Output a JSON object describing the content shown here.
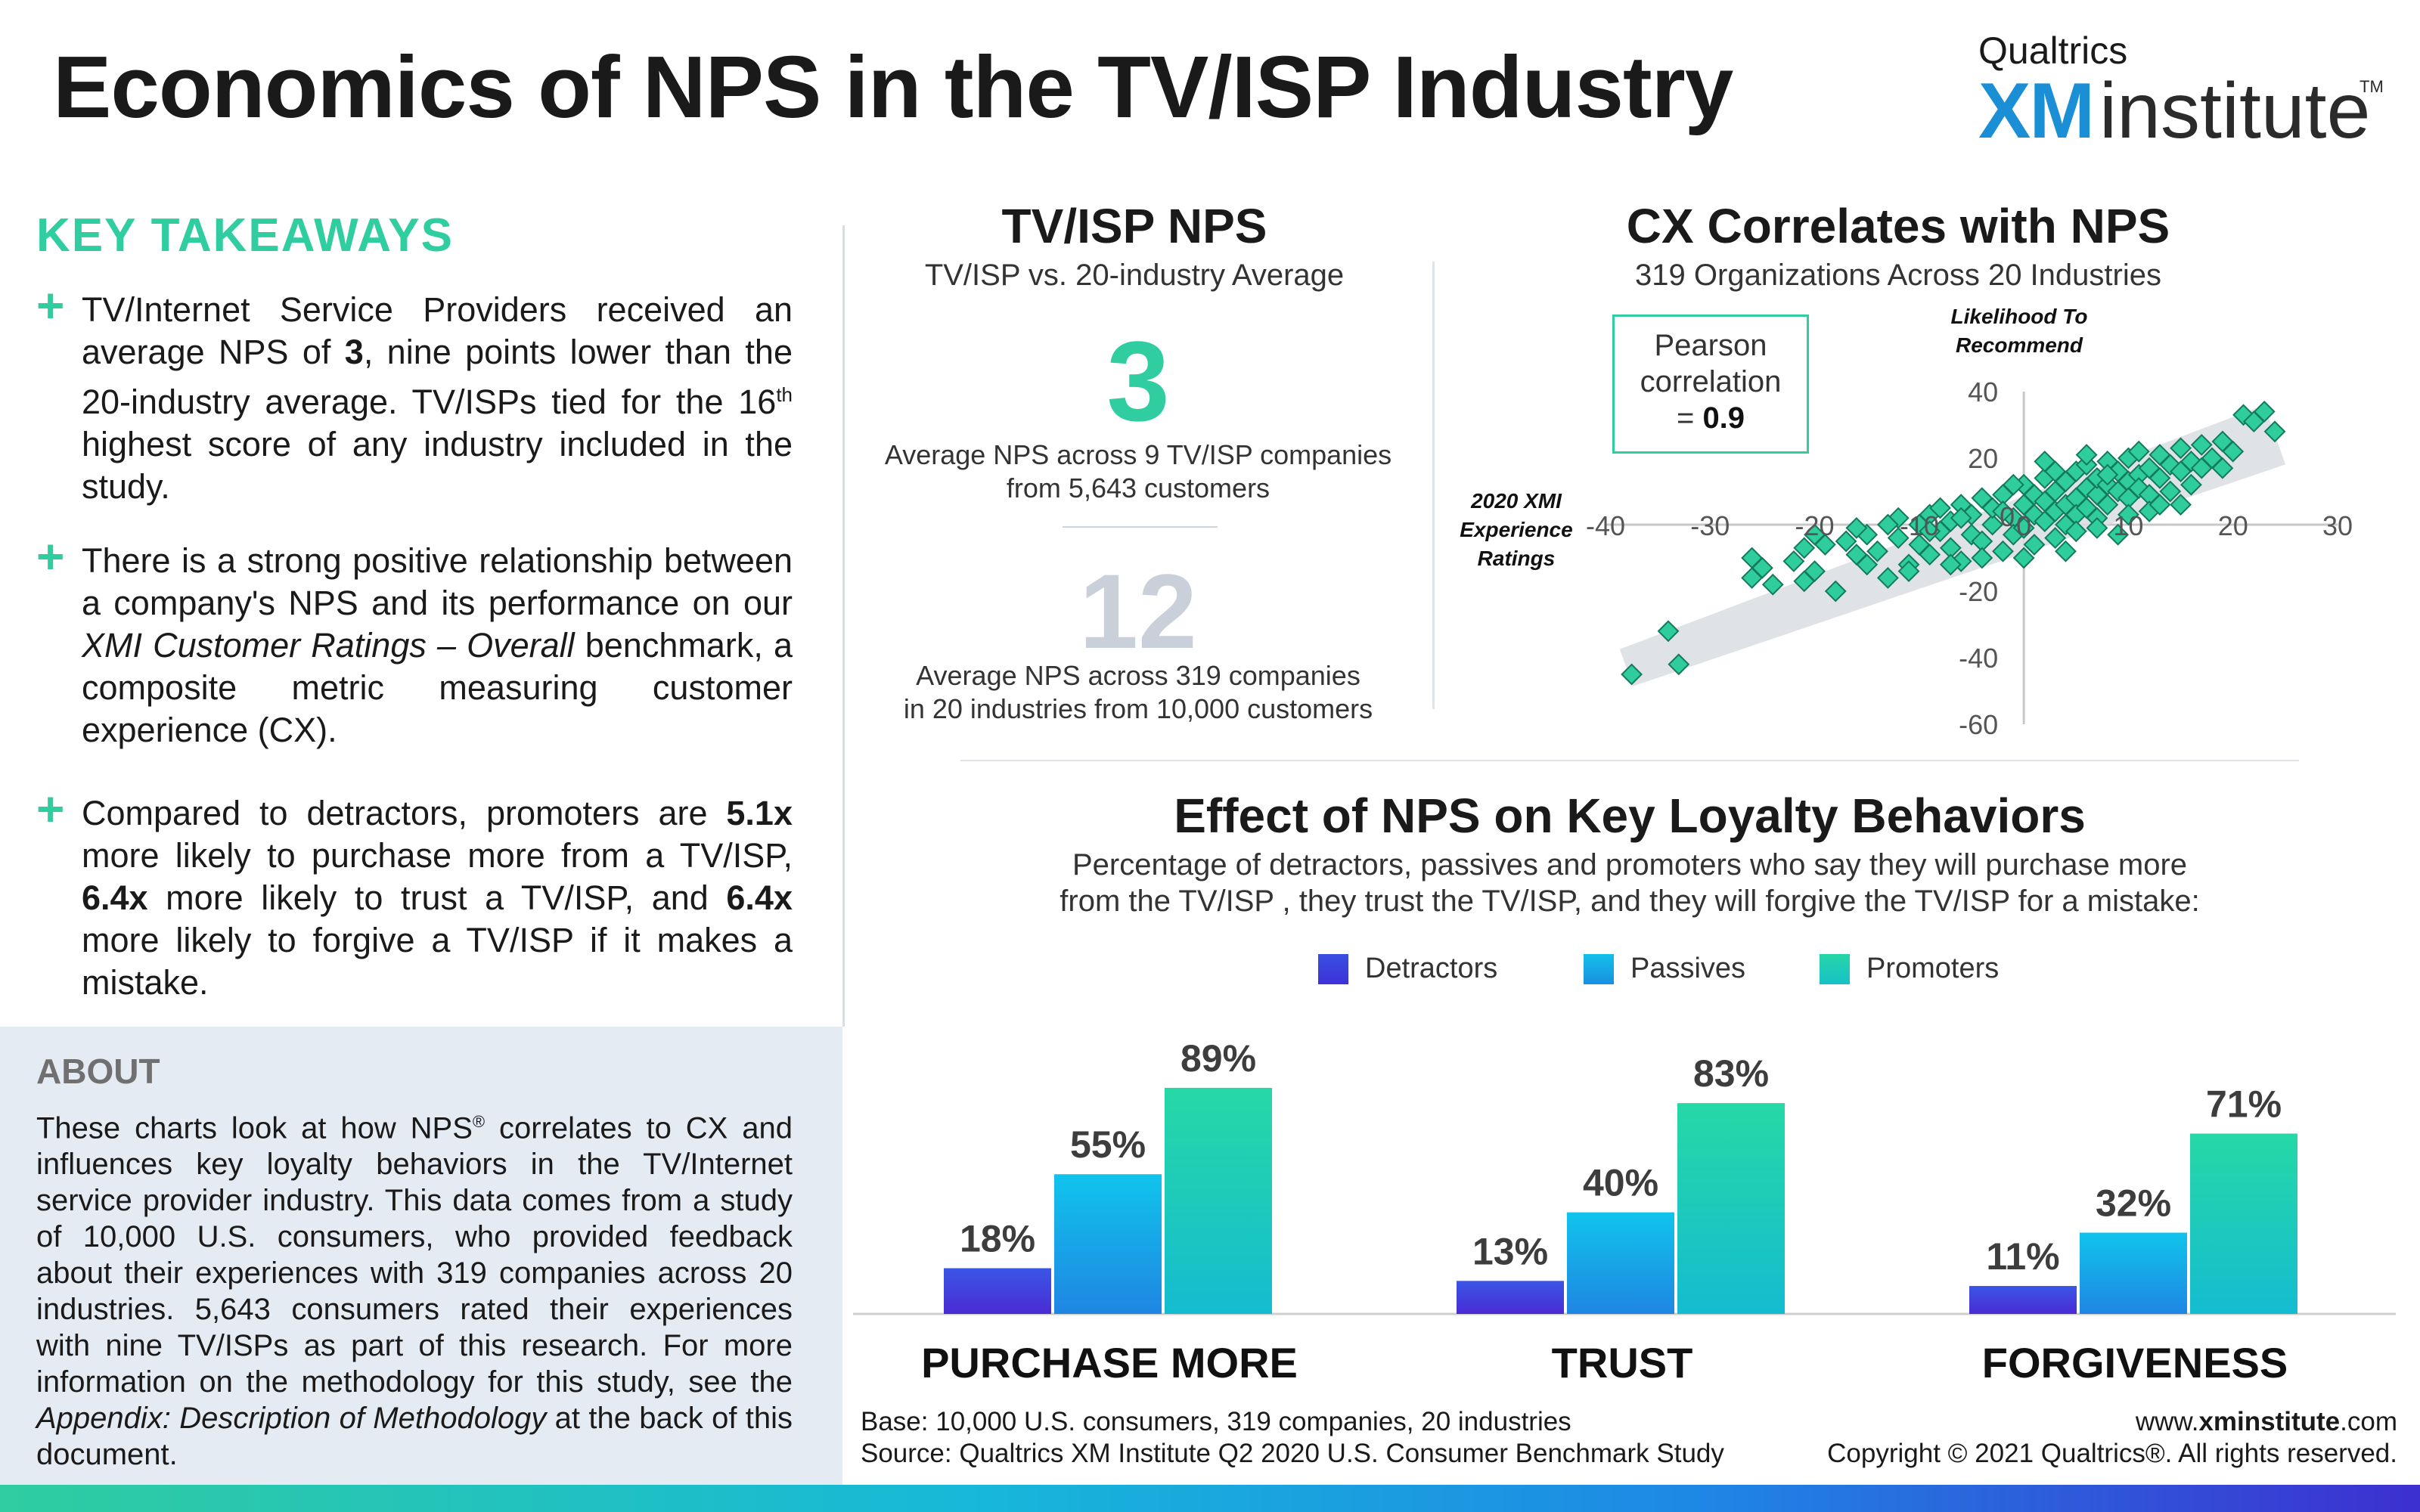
{
  "header": {
    "title": "Economics of NPS in the TV/ISP Industry",
    "brand_top": "Qualtrics",
    "brand_xm": "XM",
    "brand_institute": "institute",
    "brand_tm": "TM"
  },
  "takeaways": {
    "heading": "KEY TAKEAWAYS",
    "items": [
      {
        "p1": "TV/Internet Service Providers received an average NPS of ",
        "b1": "3",
        "p2": ", nine points lower than the 20-industry average. TV/ISPs tied for the 16",
        "sup": "th",
        "p3": " highest score of any industry included in the study."
      },
      {
        "p1": "There is a strong positive relationship between a company's NPS and its performance on our ",
        "i1": "XMI Customer Ratings – Overall",
        "p2": " benchmark, a composite metric measuring customer experience (CX)."
      },
      {
        "p1": "Compared to detractors, promoters are ",
        "b1": "5.1x",
        "p2": " more likely to purchase more from a TV/ISP, ",
        "b2": "6.4x",
        "p3": " more likely to trust a TV/ISP, and ",
        "b3": "6.4x",
        "p4": " more likely to forgive a TV/ISP if it makes a mistake."
      }
    ]
  },
  "about": {
    "heading": "ABOUT",
    "p1": "These charts look at how NPS",
    "reg": "®",
    "p2": " correlates to CX and influences key loyalty behaviors in the TV/Internet service provider industry. This data comes from a study of 10,000 U.S. consumers, who provided feedback about their experiences with 319 companies across 20 industries. 5,643 consumers rated their experiences with nine TV/ISPs as part of this research. For more information on the methodology for this study, see the ",
    "italic": "Appendix: Description of Methodology",
    "p3": " at the back of this document."
  },
  "nps": {
    "title": "TV/ISP NPS",
    "subtitle": "TV/ISP vs. 20-industry Average",
    "value_isp": "3",
    "caption_isp_1": "Average NPS across 9 TV/ISP companies",
    "caption_isp_2": "from 5,643 customers",
    "value_avg": "12",
    "caption_avg_1": "Average NPS across 319 companies",
    "caption_avg_2": "in 20 industries from 10,000 customers"
  },
  "colors": {
    "green": "#2fcda0",
    "blue_brand": "#1a8fd6",
    "detractors": "#3d32d8",
    "passives": "#0fb2ea",
    "promoters": "#27d6a6"
  },
  "chart_data": [
    {
      "type": "scatter",
      "title": "CX Correlates with NPS",
      "subtitle": "319 Organizations Across 20 Industries",
      "xlabel": "2020 XMI Experience Ratings",
      "ylabel": "Likelihood To Recommend",
      "annotation": "Pearson correlation = 0.9",
      "pearson_label": "Pearson correlation",
      "pearson_eq": "= ",
      "pearson_value": "0.9",
      "xlim": [
        -40,
        30
      ],
      "ylim": [
        -60,
        40
      ],
      "x_ticks": [
        "-40",
        "-30",
        "-20",
        "-10",
        "0",
        "10",
        "20",
        "30"
      ],
      "y_ticks": [
        "40",
        "20",
        "0",
        "-20",
        "-40",
        "-60"
      ],
      "trend": [
        [
          -38,
          -43
        ],
        [
          24,
          27
        ]
      ],
      "points": [
        [
          -37.5,
          -45
        ],
        [
          -34,
          -32
        ],
        [
          -33,
          -42
        ],
        [
          -26,
          -10
        ],
        [
          -25,
          -13
        ],
        [
          -24,
          -18
        ],
        [
          -22,
          -11
        ],
        [
          -21,
          -7
        ],
        [
          -20,
          -14
        ],
        [
          -19,
          -6
        ],
        [
          -18,
          -20
        ],
        [
          -17,
          -5
        ],
        [
          -16,
          -9
        ],
        [
          -15,
          -3
        ],
        [
          -14,
          -8
        ],
        [
          -13,
          -16
        ],
        [
          -12,
          -4
        ],
        [
          -12,
          2
        ],
        [
          -11,
          -12
        ],
        [
          -10,
          0
        ],
        [
          -10,
          -6
        ],
        [
          -9,
          3
        ],
        [
          -9,
          -9
        ],
        [
          -8,
          -2
        ],
        [
          -8,
          5
        ],
        [
          -7,
          -7
        ],
        [
          -7,
          1
        ],
        [
          -6,
          6
        ],
        [
          -6,
          -11
        ],
        [
          -5,
          -3
        ],
        [
          -5,
          3
        ],
        [
          -4,
          8
        ],
        [
          -4,
          -5
        ],
        [
          -3,
          0
        ],
        [
          -3,
          5
        ],
        [
          -2,
          -8
        ],
        [
          -2,
          9
        ],
        [
          -1,
          2
        ],
        [
          -1,
          -3
        ],
        [
          0,
          6
        ],
        [
          0,
          -1
        ],
        [
          0,
          12
        ],
        [
          1,
          3
        ],
        [
          1,
          -6
        ],
        [
          1,
          9
        ],
        [
          2,
          1
        ],
        [
          2,
          7
        ],
        [
          2,
          14
        ],
        [
          3,
          4
        ],
        [
          3,
          -4
        ],
        [
          3,
          10
        ],
        [
          4,
          6
        ],
        [
          4,
          13
        ],
        [
          4,
          0
        ],
        [
          5,
          8
        ],
        [
          5,
          16
        ],
        [
          5,
          3
        ],
        [
          6,
          11
        ],
        [
          6,
          5
        ],
        [
          6,
          18
        ],
        [
          7,
          9
        ],
        [
          7,
          14
        ],
        [
          7,
          2
        ],
        [
          8,
          12
        ],
        [
          8,
          19
        ],
        [
          8,
          6
        ],
        [
          9,
          10
        ],
        [
          9,
          16
        ],
        [
          9,
          -3
        ],
        [
          10,
          13
        ],
        [
          10,
          20
        ],
        [
          10,
          8
        ],
        [
          11,
          15
        ],
        [
          11,
          11
        ],
        [
          11,
          22
        ],
        [
          12,
          17
        ],
        [
          12,
          9
        ],
        [
          13,
          14
        ],
        [
          13,
          21
        ],
        [
          14,
          18
        ],
        [
          14,
          10
        ],
        [
          15,
          16
        ],
        [
          15,
          23
        ],
        [
          16,
          19
        ],
        [
          16,
          12
        ],
        [
          17,
          24
        ],
        [
          18,
          20
        ],
        [
          19,
          25
        ],
        [
          20,
          22
        ],
        [
          21,
          33
        ],
        [
          22,
          31
        ],
        [
          23,
          34
        ],
        [
          24,
          28
        ],
        [
          15,
          6
        ],
        [
          12,
          4
        ],
        [
          -16,
          -1
        ],
        [
          -21,
          -17
        ],
        [
          -11,
          -14
        ],
        [
          -6,
          2
        ],
        [
          -9,
          -2
        ],
        [
          3,
          16
        ],
        [
          6,
          21
        ],
        [
          2,
          19
        ],
        [
          -4,
          -10
        ],
        [
          17,
          17
        ],
        [
          19,
          17
        ],
        [
          -1,
          12
        ],
        [
          7,
          -1
        ],
        [
          13,
          6
        ],
        [
          -13,
          0
        ],
        [
          -20,
          -3
        ],
        [
          -26,
          -16
        ],
        [
          -15,
          -12
        ],
        [
          -2,
          4
        ],
        [
          4,
          -8
        ],
        [
          8,
          15
        ],
        [
          0,
          -10
        ],
        [
          10,
          3
        ],
        [
          -7,
          -12
        ],
        [
          5,
          -2
        ]
      ]
    },
    {
      "type": "bar",
      "title": "Effect of NPS on Key Loyalty Behaviors",
      "subtitle_1": "Percentage of detractors, passives and promoters who say they will purchase more",
      "subtitle_2": "from the TV/ISP , they trust the TV/ISP, and they will forgive the TV/ISP for a mistake:",
      "categories": [
        "PURCHASE MORE",
        "TRUST",
        "FORGIVENESS"
      ],
      "series": [
        {
          "name": "Detractors",
          "values": [
            18,
            13,
            11
          ],
          "labels": [
            "18%",
            "13%",
            "11%"
          ]
        },
        {
          "name": "Passives",
          "values": [
            55,
            40,
            32
          ],
          "labels": [
            "55%",
            "40%",
            "32%"
          ]
        },
        {
          "name": "Promoters",
          "values": [
            89,
            83,
            71
          ],
          "labels": [
            "89%",
            "83%",
            "71%"
          ]
        }
      ],
      "ylim": [
        0,
        100
      ]
    }
  ],
  "footer": {
    "base": "Base: 10,000 U.S. consumers, 319 companies, 20 industries",
    "source": "Source: Qualtrics XM Institute Q2 2020 U.S. Consumer Benchmark Study",
    "url_pre": "www.",
    "url_bold": "xminstitute",
    "url_post": ".com",
    "copyright": "Copyright © 2021 Qualtrics®. All rights reserved."
  }
}
